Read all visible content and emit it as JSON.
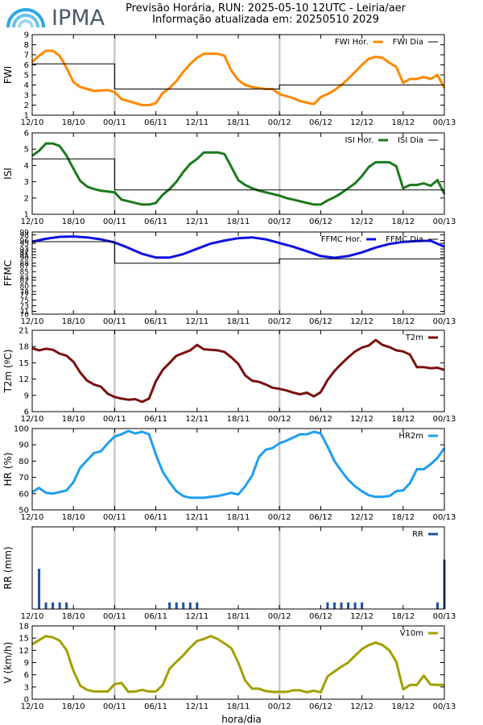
{
  "header": {
    "logo_text": "IPMA",
    "line1": "Previsão Horária, RUN: 2025-05-10 12UTC - Leiria/aer",
    "line2": "Informação atualizada em: 20250510 2029"
  },
  "xlabel": "hora/dia",
  "colors": {
    "fwi": "#ff8800",
    "isi": "#1a7a1a",
    "ffmc": "#1010e0",
    "t2m": "#7a1010",
    "hr2m": "#1e9ef0",
    "rr": "#2050a0",
    "v10m": "#a0a000",
    "day_line": "#000000",
    "separator": "#c8c8c8"
  },
  "chart_data": [
    {
      "id": "fwi",
      "type": "line",
      "ylabel": "FWI",
      "yticks": [
        "1",
        "2",
        "3",
        "4",
        "5",
        "6",
        "7",
        "8",
        "9"
      ],
      "ylim": [
        1,
        9
      ],
      "xticks": [
        "12/10",
        "18/10",
        "00/11",
        "06/11",
        "12/11",
        "18/11",
        "00/12",
        "06/12",
        "12/12",
        "18/12",
        "00/13"
      ],
      "xlim": [
        0,
        60
      ],
      "series": [
        {
          "name": "FWI Hor.",
          "style": "hourly",
          "x": [
            0,
            1,
            2,
            3,
            4,
            5,
            6,
            7,
            8,
            9,
            10,
            11,
            12,
            13,
            14,
            15,
            16,
            17,
            18,
            19,
            20,
            21,
            22,
            23,
            24,
            25,
            26,
            27,
            28,
            29,
            30,
            31,
            32,
            33,
            34,
            35,
            36,
            37,
            38,
            39,
            40,
            41,
            42,
            43,
            44,
            45,
            46,
            47,
            48,
            49,
            50,
            51,
            52,
            53,
            54,
            55,
            56,
            57,
            58,
            59,
            60
          ],
          "y": [
            6.3,
            6.9,
            7.4,
            7.4,
            6.9,
            5.7,
            4.3,
            3.8,
            3.6,
            3.4,
            3.45,
            3.5,
            3.3,
            2.6,
            2.4,
            2.2,
            2.0,
            2.0,
            2.2,
            3.2,
            3.7,
            4.4,
            5.3,
            6.1,
            6.7,
            7.1,
            7.1,
            7.1,
            6.9,
            5.4,
            4.5,
            4.0,
            3.8,
            3.7,
            3.6,
            3.6,
            3.1,
            2.9,
            2.7,
            2.4,
            2.25,
            2.1,
            2.8,
            3.1,
            3.5,
            4.0,
            4.6,
            5.3,
            6.0,
            6.6,
            6.8,
            6.7,
            6.2,
            5.8,
            4.2,
            4.6,
            4.6,
            4.8,
            4.6,
            5.0,
            3.7
          ]
        },
        {
          "name": "FWI Dia",
          "style": "daily",
          "x": [
            0,
            12,
            12,
            36,
            36,
            60
          ],
          "y": [
            6.1,
            6.1,
            3.6,
            3.6,
            4.0,
            4.0
          ]
        }
      ]
    },
    {
      "id": "isi",
      "type": "line",
      "ylabel": "ISI",
      "yticks": [
        "1",
        "2",
        "3",
        "4",
        "5",
        "6"
      ],
      "ylim": [
        1,
        6
      ],
      "xticks": [
        "12/10",
        "18/10",
        "00/11",
        "06/11",
        "12/11",
        "18/11",
        "00/12",
        "06/12",
        "12/12",
        "18/12",
        "00/13"
      ],
      "xlim": [
        0,
        60
      ],
      "series": [
        {
          "name": "ISI Hor.",
          "style": "hourly",
          "x": [
            0,
            1,
            2,
            3,
            4,
            5,
            6,
            7,
            8,
            9,
            10,
            11,
            12,
            13,
            14,
            15,
            16,
            17,
            18,
            19,
            20,
            21,
            22,
            23,
            24,
            25,
            26,
            27,
            28,
            29,
            30,
            31,
            32,
            33,
            34,
            35,
            36,
            37,
            38,
            39,
            40,
            41,
            42,
            43,
            44,
            45,
            46,
            47,
            48,
            49,
            50,
            51,
            52,
            53,
            54,
            55,
            56,
            57,
            58,
            59,
            60
          ],
          "y": [
            4.6,
            4.9,
            5.35,
            5.35,
            5.2,
            4.6,
            3.8,
            3.05,
            2.7,
            2.55,
            2.45,
            2.4,
            2.35,
            1.9,
            1.8,
            1.7,
            1.6,
            1.6,
            1.7,
            2.2,
            2.55,
            3.0,
            3.6,
            4.1,
            4.4,
            4.8,
            4.8,
            4.8,
            4.7,
            3.9,
            3.1,
            2.8,
            2.6,
            2.45,
            2.35,
            2.25,
            2.15,
            2.0,
            1.9,
            1.8,
            1.7,
            1.6,
            1.6,
            1.85,
            2.05,
            2.3,
            2.6,
            2.9,
            3.35,
            3.9,
            4.2,
            4.2,
            4.2,
            3.95,
            2.6,
            2.8,
            2.8,
            2.9,
            2.75,
            3.1,
            2.25
          ]
        },
        {
          "name": "ISI Dia",
          "style": "daily",
          "x": [
            0,
            12,
            12,
            60
          ],
          "y": [
            4.4,
            4.4,
            2.5,
            2.5
          ]
        }
      ]
    },
    {
      "id": "ffmc",
      "type": "line",
      "ylabel": "FFMC",
      "yticks": [
        "70",
        "71",
        "73",
        "75",
        "77",
        "78",
        "80",
        "82",
        "83",
        "85",
        "87",
        "88",
        "90",
        "91",
        "92",
        "93",
        "95",
        "96",
        "98",
        "99"
      ],
      "ytick_values": [
        70,
        71,
        73,
        75,
        77,
        78,
        80,
        82,
        83,
        85,
        87,
        88,
        90,
        91,
        92,
        93,
        95,
        96,
        98,
        99
      ],
      "ylim": [
        70,
        99
      ],
      "xticks": [
        "12/10",
        "18/10",
        "00/11",
        "06/11",
        "12/11",
        "18/11",
        "00/12",
        "06/12",
        "12/12",
        "18/12",
        "00/13"
      ],
      "xlim": [
        0,
        60
      ],
      "series": [
        {
          "name": "FFMC Hor.",
          "style": "hourly",
          "x": [
            0,
            2,
            4,
            6,
            8,
            10,
            12,
            14,
            16,
            18,
            20,
            22,
            24,
            26,
            28,
            30,
            32,
            34,
            36,
            38,
            40,
            42,
            44,
            46,
            48,
            50,
            52,
            54,
            56,
            58,
            60
          ],
          "y": [
            95.6,
            96.6,
            97.3,
            97.4,
            97.1,
            96.4,
            95.3,
            93.4,
            91.3,
            90.0,
            90.0,
            91.2,
            93.1,
            94.9,
            96.0,
            96.8,
            97.1,
            96.4,
            95.1,
            93.8,
            92.2,
            90.5,
            89.9,
            90.5,
            91.8,
            93.5,
            94.8,
            95.5,
            95.8,
            95.9,
            93.8
          ]
        },
        {
          "name": "FFMC Dia",
          "style": "daily",
          "x": [
            0,
            12,
            12,
            36,
            36,
            60
          ],
          "y": [
            95.6,
            95.6,
            88.0,
            88.0,
            89.5,
            89.5
          ]
        }
      ]
    },
    {
      "id": "t2m",
      "type": "line",
      "ylabel": "T2m (ºC)",
      "yticks": [
        "6",
        "9",
        "12",
        "15",
        "18",
        "21"
      ],
      "ylim": [
        6,
        21
      ],
      "xticks": [
        "12/10",
        "18/10",
        "00/11",
        "06/11",
        "12/11",
        "18/11",
        "00/12",
        "06/12",
        "12/12",
        "18/12",
        "00/13"
      ],
      "xlim": [
        0,
        60
      ],
      "series": [
        {
          "name": "T2m",
          "style": "hourly",
          "x": [
            0,
            1,
            2,
            3,
            4,
            5,
            6,
            7,
            8,
            9,
            10,
            11,
            12,
            13,
            14,
            15,
            16,
            17,
            18,
            19,
            20,
            21,
            22,
            23,
            24,
            25,
            26,
            27,
            28,
            29,
            30,
            31,
            32,
            33,
            34,
            35,
            36,
            37,
            38,
            39,
            40,
            41,
            42,
            43,
            44,
            45,
            46,
            47,
            48,
            49,
            50,
            51,
            52,
            53,
            54,
            55,
            56,
            57,
            58,
            59,
            60
          ],
          "y": [
            17.7,
            17.3,
            17.6,
            17.4,
            16.7,
            16.3,
            15.2,
            13.2,
            11.7,
            11.0,
            10.6,
            9.3,
            8.7,
            8.4,
            8.2,
            8.3,
            7.8,
            8.4,
            11.6,
            13.7,
            15.0,
            16.3,
            16.8,
            17.3,
            18.3,
            17.5,
            17.4,
            17.3,
            17.0,
            16.0,
            14.8,
            12.7,
            11.7,
            11.5,
            11.0,
            10.4,
            10.2,
            9.9,
            9.5,
            9.2,
            9.5,
            8.8,
            9.6,
            11.8,
            13.5,
            14.8,
            16.0,
            17.1,
            17.8,
            18.2,
            19.2,
            18.3,
            17.9,
            17.3,
            17.1,
            16.5,
            14.2,
            14.2,
            14.0,
            14.1,
            13.7
          ]
        }
      ]
    },
    {
      "id": "hr2m",
      "type": "line",
      "ylabel": "HR (%)",
      "yticks": [
        "50",
        "60",
        "70",
        "80",
        "90",
        "100"
      ],
      "ylim": [
        50,
        100
      ],
      "xticks": [
        "12/10",
        "18/10",
        "00/11",
        "06/11",
        "12/11",
        "18/11",
        "00/12",
        "06/12",
        "12/12",
        "18/12",
        "00/13"
      ],
      "xlim": [
        0,
        60
      ],
      "series": [
        {
          "name": "HR2m",
          "style": "hourly",
          "x": [
            0,
            1,
            2,
            3,
            4,
            5,
            6,
            7,
            8,
            9,
            10,
            11,
            12,
            13,
            14,
            15,
            16,
            17,
            18,
            19,
            20,
            21,
            22,
            23,
            24,
            25,
            26,
            27,
            28,
            29,
            30,
            31,
            32,
            33,
            34,
            35,
            36,
            37,
            38,
            39,
            40,
            41,
            42,
            43,
            44,
            45,
            46,
            47,
            48,
            49,
            50,
            51,
            52,
            53,
            54,
            55,
            56,
            57,
            58,
            59,
            60
          ],
          "y": [
            61,
            63.5,
            60.5,
            60,
            61,
            62,
            67,
            76,
            80.5,
            85,
            86,
            91,
            95,
            96.5,
            98.5,
            97,
            98,
            96.5,
            84,
            73.5,
            67,
            61.5,
            58.5,
            57.5,
            57.5,
            57.5,
            58,
            58.5,
            59.5,
            60.5,
            59.5,
            64.5,
            71,
            82.5,
            87,
            88,
            91,
            92.5,
            94.5,
            96.5,
            96.5,
            98,
            97,
            89,
            80,
            74,
            68.5,
            64.5,
            61.5,
            59,
            58,
            58,
            58.5,
            61.5,
            62,
            66.5,
            75,
            75,
            78,
            82,
            88
          ]
        }
      ]
    },
    {
      "id": "rr",
      "type": "bar",
      "ylabel": "RR (mm)",
      "yticks": [],
      "ylim": [
        0,
        1
      ],
      "xticks": [
        "12/10",
        "18/10",
        "00/11",
        "06/11",
        "12/11",
        "18/11",
        "00/12",
        "06/12",
        "12/12",
        "18/12",
        "00/13"
      ],
      "xlim": [
        0,
        60
      ],
      "series": [
        {
          "name": "RR",
          "x": [
            1,
            2,
            3,
            4,
            5,
            20,
            21,
            22,
            23,
            24,
            43,
            44,
            45,
            46,
            47,
            48,
            59,
            60
          ],
          "y": [
            0.49,
            0.08,
            0.08,
            0.08,
            0.08,
            0.08,
            0.08,
            0.08,
            0.08,
            0.08,
            0.08,
            0.08,
            0.08,
            0.08,
            0.08,
            0.08,
            0.08,
            0.6
          ]
        }
      ]
    },
    {
      "id": "v10m",
      "type": "line",
      "ylabel": "V (km/h)",
      "yticks": [
        "0",
        "3",
        "6",
        "9",
        "12",
        "15",
        "18"
      ],
      "ylim": [
        0,
        18
      ],
      "xticks": [
        "12/10",
        "18/10",
        "00/11",
        "06/11",
        "12/11",
        "18/11",
        "00/12",
        "06/12",
        "12/12",
        "18/12",
        "00/13"
      ],
      "xlim": [
        0,
        60
      ],
      "series": [
        {
          "name": "V10m",
          "style": "hourly",
          "x": [
            0,
            1,
            2,
            3,
            4,
            5,
            6,
            7,
            8,
            9,
            10,
            11,
            12,
            13,
            14,
            15,
            16,
            17,
            18,
            19,
            20,
            21,
            22,
            23,
            24,
            25,
            26,
            27,
            28,
            29,
            30,
            31,
            32,
            33,
            34,
            35,
            36,
            37,
            38,
            39,
            40,
            41,
            42,
            43,
            44,
            45,
            46,
            47,
            48,
            49,
            50,
            51,
            52,
            53,
            54,
            55,
            56,
            57,
            58,
            59,
            60
          ],
          "y": [
            13.5,
            14.5,
            15.5,
            15.2,
            14.4,
            12.0,
            7.0,
            3.3,
            2.3,
            1.9,
            1.9,
            1.9,
            3.7,
            4.0,
            1.8,
            1.9,
            2.3,
            1.9,
            1.9,
            3.5,
            7.5,
            9.2,
            10.8,
            12.7,
            14.3,
            14.8,
            15.5,
            14.8,
            13.7,
            12.5,
            9.0,
            4.6,
            2.6,
            2.6,
            2.0,
            1.8,
            1.8,
            1.8,
            2.2,
            2.2,
            1.7,
            2.1,
            1.7,
            5.6,
            6.8,
            8.0,
            9.0,
            10.7,
            12.3,
            13.3,
            13.9,
            13.3,
            12.0,
            9.2,
            2.4,
            3.5,
            3.5,
            5.8,
            3.6,
            3.5,
            3.5
          ]
        }
      ]
    }
  ]
}
